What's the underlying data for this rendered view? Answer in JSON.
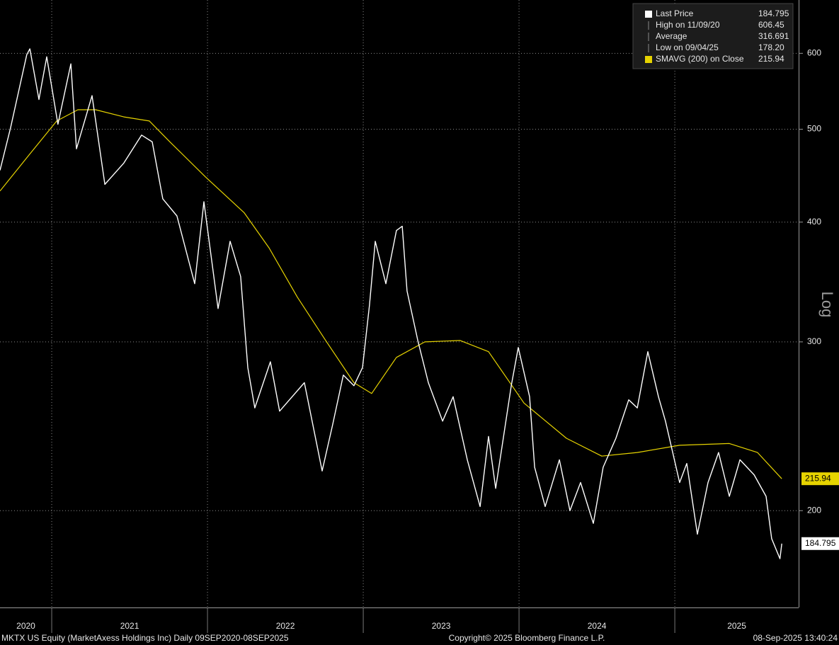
{
  "chart_data": {
    "type": "line",
    "ylabel": "Log",
    "log_scale": true,
    "grid": true,
    "ylim": [
      158.5,
      682
    ],
    "yticks": [
      200,
      300,
      400,
      500,
      600
    ],
    "xlim": [
      2020.668,
      2025.795
    ],
    "xticks": [
      2020,
      2021,
      2022,
      2023,
      2024,
      2025
    ],
    "series": [
      {
        "name": "Last Price",
        "color": "#ffffff",
        "x": [
          2020.668,
          2020.736,
          2020.84,
          2020.86,
          2020.918,
          2020.968,
          2021.04,
          2021.123,
          2021.159,
          2021.259,
          2021.341,
          2021.463,
          2021.577,
          2021.645,
          2021.713,
          2021.804,
          2021.918,
          2021.977,
          2022.068,
          2022.145,
          2022.213,
          2022.259,
          2022.304,
          2022.404,
          2022.463,
          2022.622,
          2022.736,
          2022.804,
          2022.872,
          2022.94,
          2022.995,
          2023.04,
          2023.077,
          2023.145,
          2023.213,
          2023.25,
          2023.281,
          2023.35,
          2023.418,
          2023.509,
          2023.577,
          2023.668,
          2023.75,
          2023.804,
          2023.85,
          2023.95,
          2023.995,
          2024.068,
          2024.1,
          2024.168,
          2024.259,
          2024.327,
          2024.395,
          2024.477,
          2024.54,
          2024.622,
          2024.704,
          2024.759,
          2024.827,
          2024.895,
          2024.94,
          2025.031,
          2025.077,
          2025.145,
          2025.213,
          2025.281,
          2025.35,
          2025.418,
          2025.509,
          2025.586,
          2025.622,
          2025.675,
          2025.687
        ],
        "values": [
          453,
          502,
          598,
          606.45,
          537,
          595,
          506,
          585,
          477,
          542,
          438,
          461,
          493,
          485,
          423,
          406,
          345,
          420,
          325,
          382,
          351,
          282,
          256,
          286,
          254,
          272,
          220,
          246,
          277,
          270,
          282,
          328,
          382,
          345,
          392,
          396,
          339,
          301,
          272,
          248,
          263,
          226,
          202,
          239,
          211,
          270,
          296,
          263,
          222,
          202,
          226,
          200,
          214,
          194,
          222,
          238,
          261,
          256,
          293,
          263,
          248,
          214,
          224,
          189,
          214,
          230,
          207,
          226,
          218,
          207,
          187,
          178.2,
          184.795
        ]
      },
      {
        "name": "SMAVG (200)  on Close",
        "color": "#e6d300",
        "x": [
          2020.668,
          2020.85,
          2021.032,
          2021.168,
          2021.282,
          2021.463,
          2021.627,
          2021.759,
          2021.986,
          2022.236,
          2022.395,
          2022.577,
          2022.759,
          2022.94,
          2023.054,
          2023.213,
          2023.395,
          2023.622,
          2023.804,
          2024.032,
          2024.304,
          2024.531,
          2024.759,
          2025.031,
          2025.35,
          2025.531,
          2025.687
        ],
        "values": [
          431,
          469,
          510,
          524,
          524,
          515,
          510,
          485,
          446,
          409,
          376,
          334,
          301,
          272,
          265,
          289,
          300,
          301,
          293,
          259,
          238,
          228,
          230,
          234,
          235,
          230,
          215.94
        ]
      }
    ],
    "stats": [
      {
        "label": "High on 11/09/20",
        "value": 606.45
      },
      {
        "label": "Average",
        "value": 316.691
      },
      {
        "label": "Low on 09/04/25",
        "value": {
          "value": 178.2,
          "label": "178.20"
        }
      }
    ],
    "footer_left": "MKTX US Equity (MarketAxess Holdings Inc)  Daily 09SEP2020-08SEP2025",
    "footer_center": "Copyright© 2025 Bloomberg Finance L.P.",
    "footer_right": "08-Sep-2025 13:40:24"
  }
}
